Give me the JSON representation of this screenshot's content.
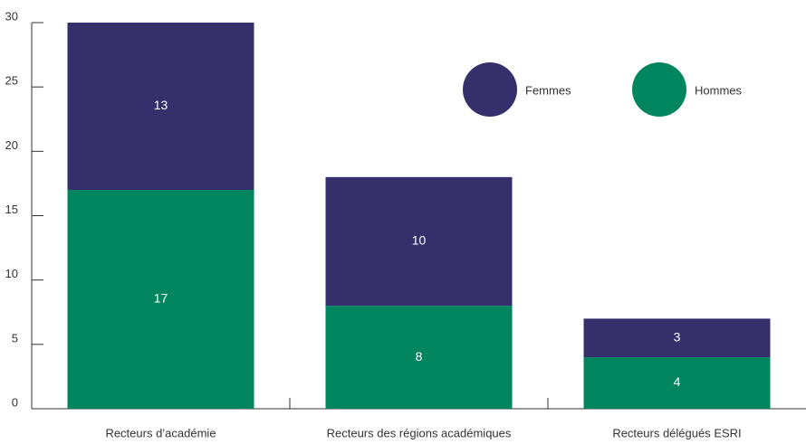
{
  "chart_data": {
    "type": "bar",
    "stacked": true,
    "categories": [
      "Recteurs d’académie",
      "Recteurs des régions académiques",
      "Recteurs délégués ESRI"
    ],
    "series": [
      {
        "name": "Hommes",
        "color": "#00855f",
        "values": [
          17,
          8,
          4
        ]
      },
      {
        "name": "Femmes",
        "color": "#35306b",
        "values": [
          13,
          10,
          3
        ]
      }
    ],
    "ylim": [
      0,
      30
    ],
    "yticks": [
      0,
      5,
      10,
      15,
      20,
      25,
      30
    ]
  }
}
